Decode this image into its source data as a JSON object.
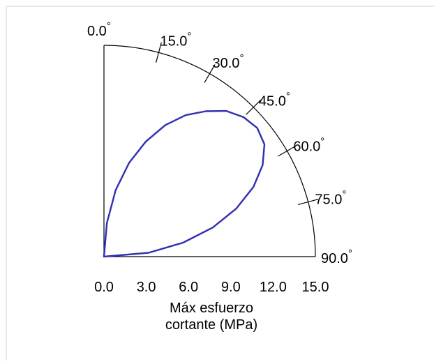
{
  "chart_data": {
    "type": "polar-line",
    "sector": "quarter",
    "angle_zero": "top",
    "angle_direction": "clockwise",
    "xlabel_lines": [
      "Máx esfuerzo",
      "cortante (MPa)"
    ],
    "radial_ticks": [
      "0.0",
      "3.0",
      "6.0",
      "9.0",
      "12.0",
      "15.0"
    ],
    "radial_tick_values": [
      0,
      3,
      6,
      9,
      12,
      15
    ],
    "rlim": [
      0,
      15
    ],
    "angle_ticks": [
      "0.0",
      "15.0",
      "30.0",
      "45.0",
      "60.0",
      "75.0",
      "90.0"
    ],
    "angle_tick_values": [
      0,
      15,
      30,
      45,
      60,
      75,
      90
    ],
    "degree_symbol": "°",
    "grid": false,
    "colors": {
      "series": "#2b2bd0",
      "axis": "#000000",
      "frame": "#cfcfcf"
    },
    "series": [
      {
        "theta": [
          0,
          5,
          10,
          15,
          20,
          25,
          30,
          35,
          40,
          45,
          50,
          55,
          60,
          65,
          70,
          75,
          80,
          85,
          90
        ],
        "r": [
          0,
          2.4,
          4.8,
          6.9,
          8.7,
          10.3,
          11.6,
          12.6,
          13.5,
          14.0,
          14.2,
          13.9,
          13.0,
          11.7,
          10.0,
          8.0,
          5.7,
          3.2,
          0
        ]
      }
    ]
  }
}
